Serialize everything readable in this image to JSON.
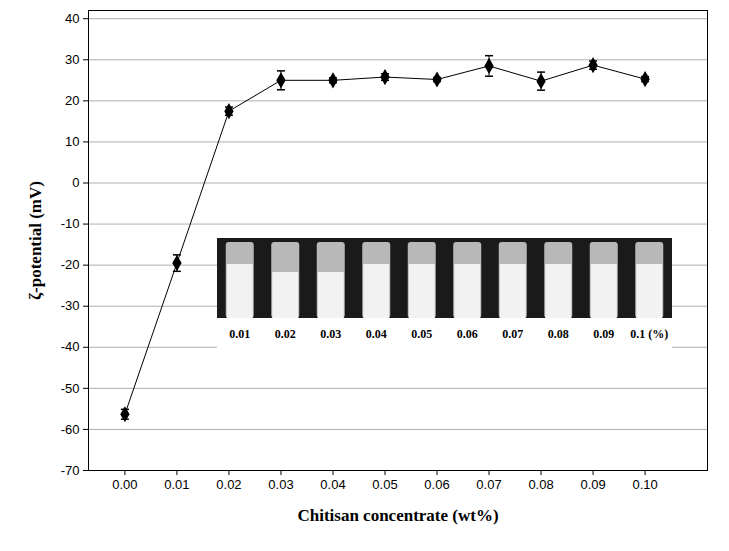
{
  "chart_data": {
    "type": "line",
    "x_label": "Chitisan concentrate (wt%)",
    "y_label": "ζ-potential (mV)",
    "x": [
      0.0,
      0.01,
      0.02,
      0.03,
      0.04,
      0.05,
      0.06,
      0.07,
      0.08,
      0.09,
      0.1
    ],
    "values": [
      -56.3,
      -19.5,
      17.5,
      25.0,
      25.0,
      25.8,
      25.2,
      28.5,
      24.8,
      28.7,
      25.3
    ],
    "errors": [
      1.2,
      2.0,
      1.0,
      2.3,
      0.6,
      0.8,
      0.5,
      2.5,
      2.2,
      1.0,
      0.6
    ],
    "color": "#000000",
    "marker": "diamond",
    "xlim": [
      -0.007,
      0.112
    ],
    "xticks": [
      {
        "value": 0.0,
        "label": "0.00"
      },
      {
        "value": 0.01,
        "label": "0.01"
      },
      {
        "value": 0.02,
        "label": "0.02"
      },
      {
        "value": 0.03,
        "label": "0.03"
      },
      {
        "value": 0.04,
        "label": "0.04"
      },
      {
        "value": 0.05,
        "label": "0.05"
      },
      {
        "value": 0.06,
        "label": "0.06"
      },
      {
        "value": 0.07,
        "label": "0.07"
      },
      {
        "value": 0.08,
        "label": "0.08"
      },
      {
        "value": 0.09,
        "label": "0.09"
      },
      {
        "value": 0.1,
        "label": "0.10"
      }
    ],
    "ylim": [
      -70,
      42
    ],
    "yticks": [
      -70,
      -60,
      -50,
      -40,
      -30,
      -20,
      -10,
      0,
      10,
      20,
      30,
      40
    ],
    "grid": true,
    "annotations": [
      "0.01",
      "0.02",
      "0.03",
      "0.04",
      "0.05",
      "0.06",
      "0.07",
      "0.08",
      "0.09",
      "0.1 (%)"
    ]
  }
}
